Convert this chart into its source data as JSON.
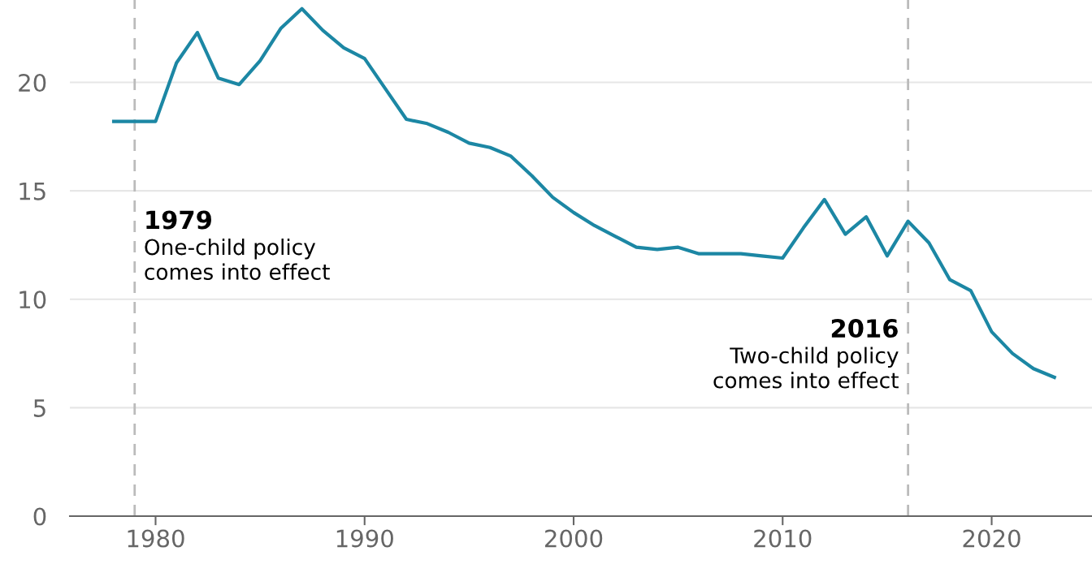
{
  "chart_data": {
    "type": "line",
    "x": [
      1978,
      1979,
      1980,
      1981,
      1982,
      1983,
      1984,
      1985,
      1986,
      1987,
      1988,
      1989,
      1990,
      1991,
      1992,
      1993,
      1994,
      1995,
      1996,
      1997,
      1998,
      1999,
      2000,
      2001,
      2002,
      2003,
      2004,
      2005,
      2006,
      2007,
      2008,
      2009,
      2010,
      2011,
      2012,
      2013,
      2014,
      2015,
      2016,
      2017,
      2018,
      2019,
      2020,
      2021,
      2022,
      2023
    ],
    "series": [
      {
        "color": "#1c87a4",
        "values": [
          18.2,
          18.2,
          18.2,
          20.9,
          22.3,
          20.2,
          19.9,
          21.0,
          22.5,
          23.4,
          22.4,
          21.6,
          21.1,
          19.7,
          18.3,
          18.1,
          17.7,
          17.2,
          17.0,
          16.6,
          15.7,
          14.7,
          14.0,
          13.4,
          12.9,
          12.4,
          12.3,
          12.4,
          12.1,
          12.1,
          12.1,
          12.0,
          11.9,
          13.3,
          14.6,
          13.0,
          13.8,
          12.0,
          13.6,
          12.6,
          10.9,
          10.4,
          8.5,
          7.5,
          6.8,
          6.4
        ]
      }
    ],
    "xlim": [
      1975.9,
      2024.8
    ],
    "ylim": [
      0,
      23.8
    ],
    "xticks": [
      1980,
      1990,
      2000,
      2010,
      2020
    ],
    "yticks": [
      0,
      5,
      10,
      15,
      20
    ],
    "grid": "y",
    "line_style": "solid",
    "marker": "none",
    "ref_lines": [
      {
        "axis": "x",
        "value": 1979,
        "label": "1979",
        "color": "#bbbbbb",
        "line_style": "dashed"
      },
      {
        "axis": "x",
        "value": 2016,
        "label": "2016",
        "color": "#bbbbbb",
        "line_style": "dashed"
      }
    ],
    "annotations": [
      {
        "text": "One-child policy\ncomes into effect",
        "x": 1979,
        "y": 12.8
      },
      {
        "text": "Two-child policy\ncomes into effect",
        "x": 2016,
        "y": 7.8
      }
    ]
  }
}
